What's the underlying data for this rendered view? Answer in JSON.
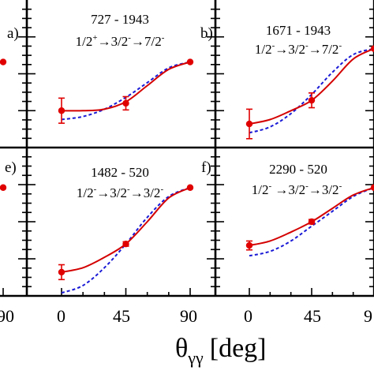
{
  "colors": {
    "fit": "#d40000",
    "theory": "#1a1ad6",
    "data": "#e00000",
    "axis": "#000000"
  },
  "xlabel": {
    "theta": "θ",
    "subscript": "γγ",
    "unit": "[deg]"
  },
  "chart_data": [
    {
      "type": "scatter",
      "id": "a",
      "panel_letter": "a)",
      "title": "",
      "xlim": [
        -12,
        90
      ],
      "ylim": [
        0,
        1
      ],
      "points": [
        {
          "x": 90,
          "y": 0.58,
          "err": 0
        }
      ],
      "fit": [],
      "theory": []
    },
    {
      "type": "scatter",
      "id": "b-left",
      "panel_letter": "b)",
      "title": "727 - 1943",
      "cascade": [
        "1/2",
        "+",
        "→3/2",
        "-",
        "→7/2",
        "-"
      ],
      "xlim": [
        -12,
        90
      ],
      "ylim": [
        0,
        1
      ],
      "points": [
        {
          "x": 0,
          "y": 0.25,
          "err": 0.085
        },
        {
          "x": 45,
          "y": 0.3,
          "err": 0.045
        },
        {
          "x": 90,
          "y": 0.58,
          "err": 0
        }
      ],
      "fit": [
        [
          0,
          0.25
        ],
        [
          15,
          0.25
        ],
        [
          30,
          0.26
        ],
        [
          45,
          0.31
        ],
        [
          60,
          0.42
        ],
        [
          75,
          0.53
        ],
        [
          90,
          0.58
        ]
      ],
      "theory": [
        [
          0,
          0.19
        ],
        [
          15,
          0.21
        ],
        [
          30,
          0.26
        ],
        [
          45,
          0.34
        ],
        [
          60,
          0.44
        ],
        [
          75,
          0.54
        ],
        [
          90,
          0.58
        ]
      ]
    },
    {
      "type": "scatter",
      "id": "b-right",
      "panel_letter": "",
      "title": "1671 - 1943",
      "cascade": [
        "1/2",
        "-",
        "→3/2",
        "-",
        "→7/2",
        "-"
      ],
      "xlim": [
        -12,
        90
      ],
      "ylim": [
        0,
        1
      ],
      "points": [
        {
          "x": 0,
          "y": 0.16,
          "err": 0.1
        },
        {
          "x": 45,
          "y": 0.32,
          "err": 0.05
        },
        {
          "x": 90,
          "y": 0.67,
          "err": 0
        }
      ],
      "fit": [
        [
          0,
          0.16
        ],
        [
          15,
          0.19
        ],
        [
          30,
          0.25
        ],
        [
          45,
          0.32
        ],
        [
          60,
          0.45
        ],
        [
          75,
          0.6
        ],
        [
          90,
          0.67
        ]
      ],
      "theory": [
        [
          0,
          0.1
        ],
        [
          15,
          0.14
        ],
        [
          30,
          0.23
        ],
        [
          45,
          0.36
        ],
        [
          60,
          0.51
        ],
        [
          75,
          0.63
        ],
        [
          90,
          0.67
        ]
      ]
    },
    {
      "type": "scatter",
      "id": "e",
      "panel_letter": "e)",
      "title": "",
      "xlim": [
        -12,
        90
      ],
      "ylim": [
        0,
        1
      ],
      "points": [
        {
          "x": 90,
          "y": 0.73,
          "err": 0
        }
      ],
      "fit": [],
      "theory": []
    },
    {
      "type": "scatter",
      "id": "e-right",
      "panel_letter": "f)",
      "title": "1482 - 520",
      "cascade": [
        "1/2",
        "-",
        "→3/2",
        "-",
        "→3/2",
        "-"
      ],
      "xlim": [
        -12,
        90
      ],
      "ylim": [
        0,
        1
      ],
      "points": [
        {
          "x": 0,
          "y": 0.16,
          "err": 0.05
        },
        {
          "x": 45,
          "y": 0.35,
          "err": 0.015
        },
        {
          "x": 90,
          "y": 0.73,
          "err": 0
        }
      ],
      "fit": [
        [
          0,
          0.16
        ],
        [
          15,
          0.19
        ],
        [
          30,
          0.26
        ],
        [
          45,
          0.35
        ],
        [
          60,
          0.5
        ],
        [
          75,
          0.66
        ],
        [
          90,
          0.73
        ]
      ],
      "theory": [
        [
          0,
          0.02
        ],
        [
          15,
          0.07
        ],
        [
          30,
          0.19
        ],
        [
          45,
          0.35
        ],
        [
          60,
          0.53
        ],
        [
          75,
          0.67
        ],
        [
          90,
          0.73
        ]
      ]
    },
    {
      "type": "scatter",
      "id": "f",
      "panel_letter": "",
      "title": "2290 - 520",
      "cascade": [
        "1/2",
        "-",
        " →3/2",
        "-",
        "→3/2",
        "-"
      ],
      "xlim": [
        -12,
        90
      ],
      "ylim": [
        0,
        1
      ],
      "points": [
        {
          "x": 0,
          "y": 0.34,
          "err": 0.03
        },
        {
          "x": 45,
          "y": 0.5,
          "err": 0.015
        },
        {
          "x": 90,
          "y": 0.73,
          "err": 0
        }
      ],
      "fit": [
        [
          0,
          0.34
        ],
        [
          15,
          0.37
        ],
        [
          30,
          0.43
        ],
        [
          45,
          0.5
        ],
        [
          60,
          0.59
        ],
        [
          75,
          0.68
        ],
        [
          90,
          0.73
        ]
      ],
      "theory": [
        [
          0,
          0.27
        ],
        [
          15,
          0.3
        ],
        [
          30,
          0.37
        ],
        [
          45,
          0.47
        ],
        [
          60,
          0.57
        ],
        [
          75,
          0.67
        ],
        [
          90,
          0.73
        ]
      ]
    }
  ],
  "x_tick_labels": [
    "0",
    "45",
    "90"
  ],
  "edge_tick_labels": [
    "90",
    "9"
  ]
}
